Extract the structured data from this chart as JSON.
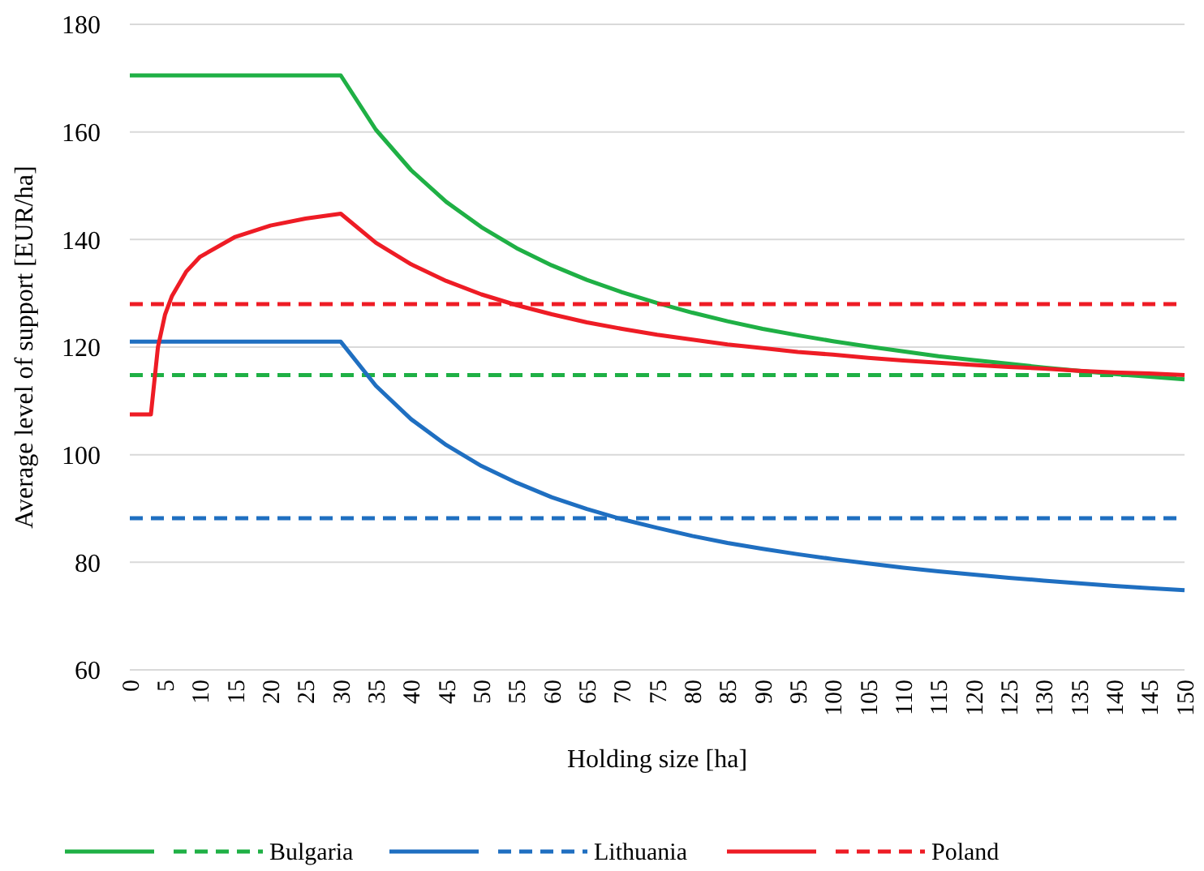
{
  "chart_data": {
    "type": "line",
    "xlabel": "Holding size [ha]",
    "ylabel": "Average level of support [EUR/ha]",
    "xlim": [
      0,
      150
    ],
    "xticks": [
      0,
      5,
      10,
      15,
      20,
      25,
      30,
      35,
      40,
      45,
      50,
      55,
      60,
      65,
      70,
      75,
      80,
      85,
      90,
      95,
      100,
      105,
      110,
      115,
      120,
      125,
      130,
      135,
      140,
      145,
      150
    ],
    "ylim": [
      60,
      180
    ],
    "yticks": [
      60,
      80,
      100,
      120,
      140,
      160,
      180
    ],
    "grid": "y",
    "legend": "bottom",
    "marker": "none",
    "series": [
      {
        "color": "#1fb045",
        "line_style": "solid",
        "x": [
          0,
          5,
          10,
          15,
          20,
          25,
          30,
          35,
          40,
          45,
          50,
          55,
          60,
          65,
          70,
          75,
          80,
          85,
          90,
          95,
          100,
          105,
          110,
          115,
          120,
          125,
          130,
          135,
          140,
          145,
          150
        ],
        "values": [
          170.5,
          170.5,
          170.5,
          170.5,
          170.5,
          170.5,
          170.5,
          160.4,
          152.9,
          147.0,
          142.3,
          138.4,
          135.2,
          132.5,
          130.2,
          128.2,
          126.4,
          124.8,
          123.4,
          122.2,
          121.1,
          120.1,
          119.2,
          118.3,
          117.6,
          116.9,
          116.2,
          115.6,
          115.0,
          114.5,
          114.0
        ]
      },
      {
        "name": "Bulgaria",
        "color": "#1fb045",
        "line_style": "dashed",
        "x": [
          0,
          150
        ],
        "values": [
          114.8,
          114.8
        ]
      },
      {
        "color": "#1f6fc1",
        "line_style": "solid",
        "x": [
          0,
          5,
          10,
          15,
          20,
          25,
          30,
          35,
          40,
          45,
          50,
          55,
          60,
          65,
          70,
          75,
          80,
          85,
          90,
          95,
          100,
          105,
          110,
          115,
          120,
          125,
          130,
          135,
          140,
          145,
          150
        ],
        "values": [
          121,
          121,
          121,
          121,
          121,
          121,
          121,
          112.8,
          106.6,
          101.8,
          97.9,
          94.8,
          92.1,
          89.9,
          88.0,
          86.4,
          84.9,
          83.6,
          82.5,
          81.5,
          80.6,
          79.8,
          79.0,
          78.3,
          77.7,
          77.1,
          76.6,
          76.1,
          75.6,
          75.2,
          74.8
        ]
      },
      {
        "name": "Lithuania",
        "color": "#1f6fc1",
        "line_style": "dashed",
        "x": [
          0,
          150
        ],
        "values": [
          88.2,
          88.2
        ]
      },
      {
        "color": "#ee1c25",
        "line_style": "solid",
        "x": [
          0,
          3,
          4,
          5,
          6,
          8,
          10,
          15,
          20,
          25,
          30,
          35,
          40,
          45,
          50,
          55,
          60,
          65,
          70,
          75,
          80,
          85,
          90,
          95,
          100,
          105,
          110,
          115,
          120,
          125,
          130,
          135,
          140,
          145,
          150
        ],
        "values": [
          107.5,
          107.5,
          120,
          126,
          129.5,
          134,
          136.8,
          140.5,
          142.6,
          143.9,
          144.8,
          139.4,
          135.4,
          132.3,
          129.8,
          127.8,
          126.1,
          124.6,
          123.4,
          122.3,
          121.4,
          120.5,
          119.8,
          119.1,
          118.6,
          118.0,
          117.5,
          117.1,
          116.7,
          116.3,
          116.0,
          115.6,
          115.3,
          115.1,
          114.8
        ]
      },
      {
        "name": "Poland",
        "color": "#ee1c25",
        "line_style": "dashed",
        "x": [
          0,
          150
        ],
        "values": [
          128,
          128
        ]
      }
    ]
  }
}
